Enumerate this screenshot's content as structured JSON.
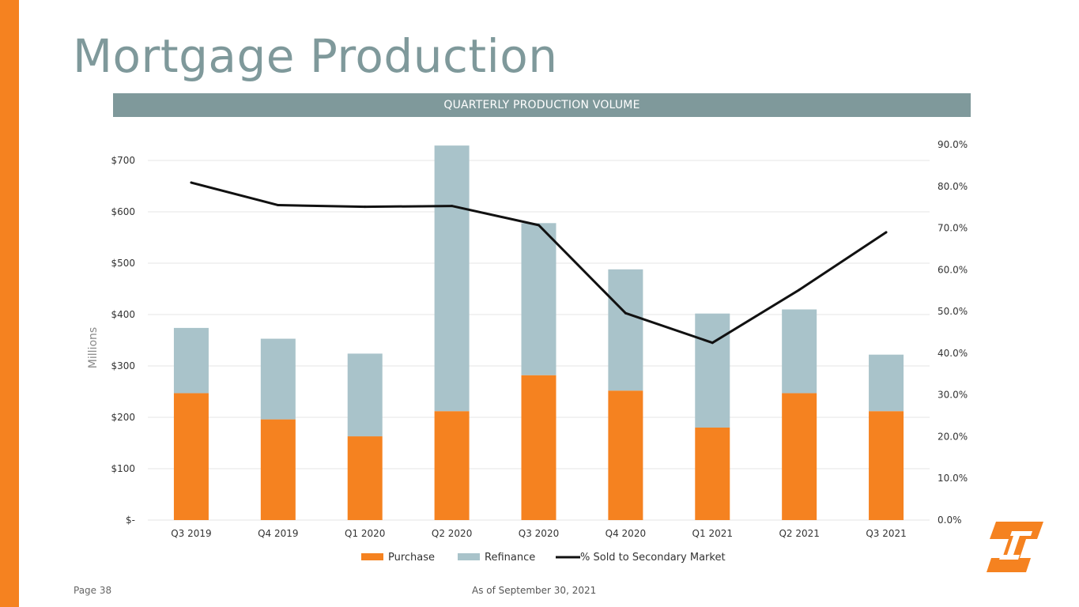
{
  "slide": {
    "title": "Mortgage Production",
    "section_header": "QUARTERLY PRODUCTION VOLUME",
    "page_label": "Page 38",
    "as_of": "As of September 30, 2021",
    "accent_color": "#f58220",
    "header_color": "#7f999b",
    "logo_icon": "first-interstate-logo-icon"
  },
  "chart_data": {
    "type": "bar",
    "stacked": true,
    "title": "",
    "ylabel": "Millions",
    "ylim": [
      0,
      700
    ],
    "y2lim": [
      0,
      90
    ],
    "categories": [
      "Q3 2019",
      "Q4 2019",
      "Q1 2020",
      "Q2 2020",
      "Q3 2020",
      "Q4 2020",
      "Q1 2021",
      "Q2 2021",
      "Q3 2021"
    ],
    "y_ticks": [
      {
        "value": 0,
        "label": "$-"
      },
      {
        "value": 100,
        "label": "$100"
      },
      {
        "value": 200,
        "label": "$200"
      },
      {
        "value": 300,
        "label": "$300"
      },
      {
        "value": 400,
        "label": "$400"
      },
      {
        "value": 500,
        "label": "$500"
      },
      {
        "value": 600,
        "label": "$600"
      },
      {
        "value": 700,
        "label": "$700"
      }
    ],
    "y2_ticks": [
      {
        "value": 0,
        "label": "0.0%"
      },
      {
        "value": 10,
        "label": "10.0%"
      },
      {
        "value": 20,
        "label": "20.0%"
      },
      {
        "value": 30,
        "label": "30.0%"
      },
      {
        "value": 40,
        "label": "40.0%"
      },
      {
        "value": 50,
        "label": "50.0%"
      },
      {
        "value": 60,
        "label": "60.0%"
      },
      {
        "value": 70,
        "label": "70.0%"
      },
      {
        "value": 80,
        "label": "80.0%"
      },
      {
        "value": 90,
        "label": "90.0%"
      }
    ],
    "series": [
      {
        "name": "Purchase",
        "type": "bar",
        "color": "#f58220",
        "values": [
          247,
          196,
          163,
          212,
          282,
          252,
          180,
          247,
          212
        ]
      },
      {
        "name": "Refinance",
        "type": "bar",
        "color": "#a9c3ca",
        "values": [
          127,
          157,
          161,
          517,
          296,
          236,
          222,
          163,
          110
        ]
      },
      {
        "name": "% Sold to Secondary Market",
        "type": "line",
        "axis": "right",
        "color": "#111111",
        "values": [
          80.9,
          75.5,
          75.1,
          75.3,
          70.7,
          49.6,
          42.5,
          55.2,
          69.0
        ]
      }
    ],
    "legend": {
      "position": "bottom"
    }
  }
}
